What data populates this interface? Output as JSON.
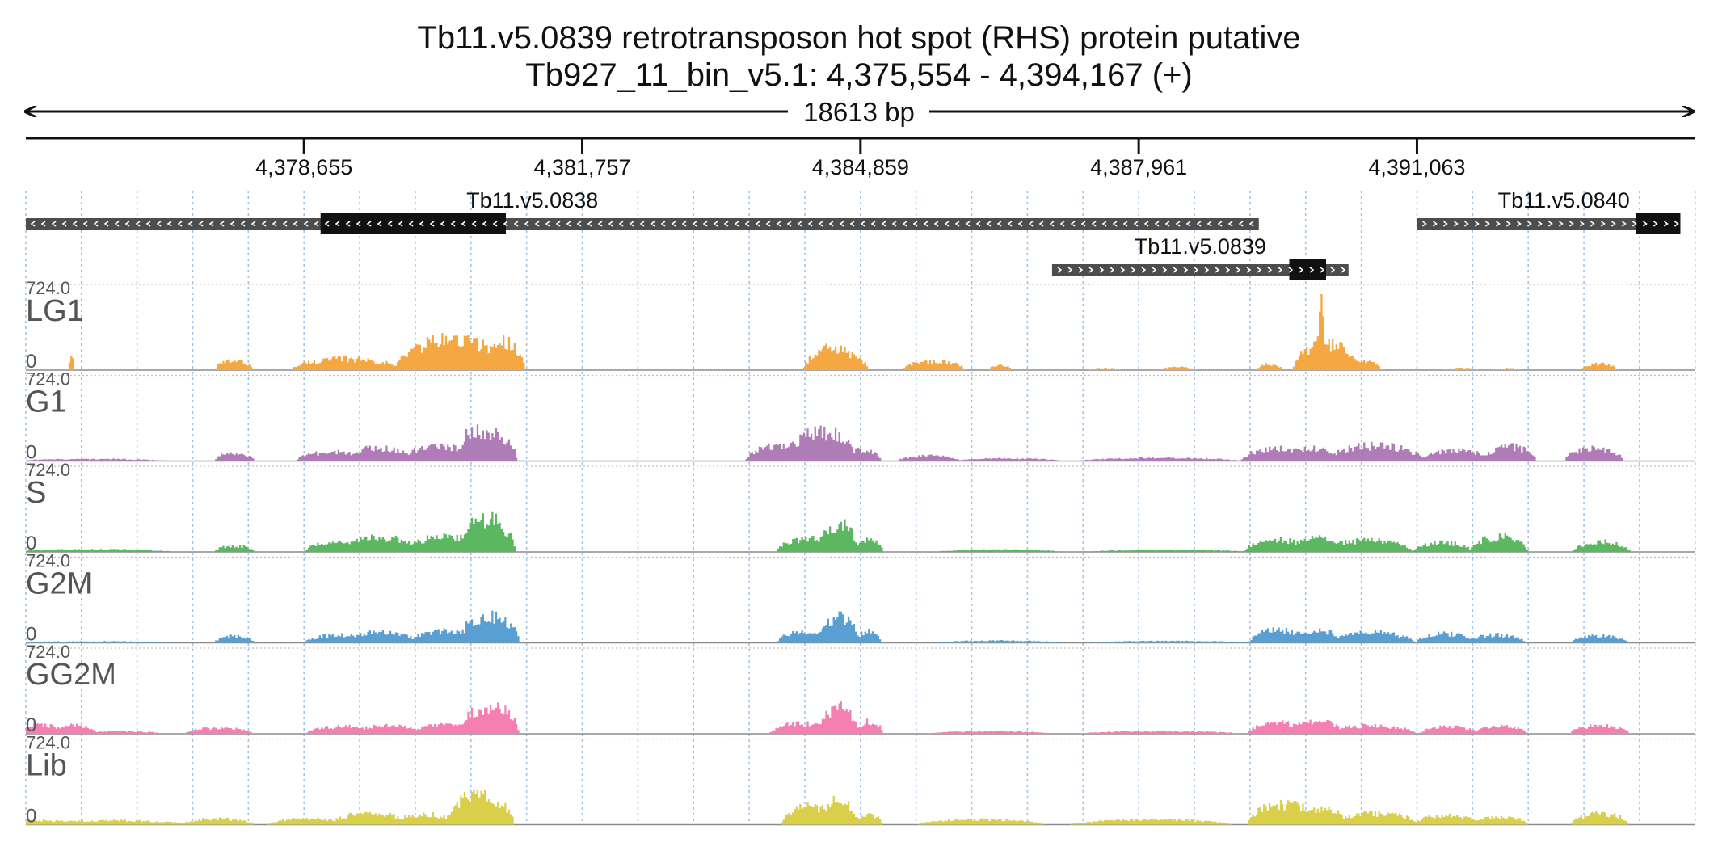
{
  "chart_data": {
    "type": "area",
    "title": "Tb11.v5.0839  retrotransposon hot spot (RHS) protein  putative",
    "subtitle": "Tb927_11_bin_v5.1: 4,375,554 - 4,394,167 (+)",
    "span_label": "18613 bp",
    "x_range": [
      4375554,
      4394167
    ],
    "x_ticks": [
      {
        "value": 4378655,
        "label": "4,378,655"
      },
      {
        "value": 4381757,
        "label": "4,381,757"
      },
      {
        "value": 4384859,
        "label": "4,384,859"
      },
      {
        "value": 4387961,
        "label": "4,387,961"
      },
      {
        "value": 4391063,
        "label": "4,391,063"
      }
    ],
    "grid": true,
    "genes": [
      {
        "name": "Tb11.v5.0838",
        "strand": "-",
        "start": 4375554,
        "end": 4389300,
        "cds_start": 4378840,
        "cds_end": 4380905,
        "row": 0
      },
      {
        "name": "Tb11.v5.0839",
        "strand": "+",
        "start": 4386995,
        "end": 4390300,
        "cds_start": 4389640,
        "cds_end": 4390050,
        "row": 1
      },
      {
        "name": "Tb11.v5.0840",
        "strand": "+",
        "start": 4391063,
        "end": 4394000,
        "cds_start": 4393500,
        "cds_end": 4394000,
        "row": 0
      }
    ],
    "y_range": [
      0,
      724.0
    ],
    "max_label": "724.0",
    "min_label": "0",
    "tracks": [
      {
        "name": "LG1",
        "color": "#f5a742",
        "peaks": [
          [
            4376062,
            40,
            130
          ],
          [
            4377880,
            220,
            90
          ],
          [
            4379130,
            620,
            110
          ],
          [
            4380320,
            650,
            300
          ],
          [
            4380880,
            240,
            280
          ],
          [
            4380520,
            420,
            150
          ],
          [
            4384545,
            320,
            210
          ],
          [
            4384750,
            200,
            120
          ],
          [
            4385680,
            350,
            90
          ],
          [
            4386410,
            130,
            50
          ],
          [
            4387580,
            180,
            20
          ],
          [
            4388400,
            200,
            30
          ],
          [
            4389420,
            150,
            60
          ],
          [
            4390040,
            360,
            250
          ],
          [
            4389992,
            40,
            700
          ],
          [
            4390420,
            240,
            100
          ],
          [
            4391550,
            200,
            20
          ],
          [
            4392080,
            150,
            18
          ],
          [
            4393100,
            200,
            60
          ]
        ]
      },
      {
        "name": "G1",
        "color": "#b07cb8",
        "peaks": [
          [
            4376300,
            850,
            20
          ],
          [
            4377880,
            220,
            80
          ],
          [
            4379000,
            440,
            90
          ],
          [
            4379480,
            400,
            130
          ],
          [
            4380200,
            500,
            140
          ],
          [
            4380700,
            330,
            300
          ],
          [
            4380550,
            150,
            330
          ],
          [
            4384000,
            420,
            160
          ],
          [
            4384420,
            420,
            280
          ],
          [
            4384870,
            220,
            110
          ],
          [
            4385620,
            350,
            50
          ],
          [
            4386500,
            600,
            25
          ],
          [
            4388200,
            900,
            30
          ],
          [
            4389500,
            400,
            120
          ],
          [
            4389900,
            330,
            120
          ],
          [
            4390600,
            550,
            150
          ],
          [
            4391500,
            400,
            100
          ],
          [
            4392100,
            300,
            140
          ],
          [
            4393040,
            330,
            120
          ]
        ]
      },
      {
        "name": "S",
        "color": "#5cb860",
        "peaks": [
          [
            4376300,
            900,
            25
          ],
          [
            4377880,
            220,
            60
          ],
          [
            4379080,
            420,
            100
          ],
          [
            4379500,
            450,
            140
          ],
          [
            4380250,
            450,
            150
          ],
          [
            4380680,
            340,
            300
          ],
          [
            4380760,
            120,
            380
          ],
          [
            4384300,
            380,
            130
          ],
          [
            4384620,
            220,
            280
          ],
          [
            4384960,
            150,
            120
          ],
          [
            4386400,
            700,
            22
          ],
          [
            4388300,
            900,
            20
          ],
          [
            4389520,
            380,
            120
          ],
          [
            4389950,
            300,
            130
          ],
          [
            4390500,
            520,
            110
          ],
          [
            4391350,
            330,
            90
          ],
          [
            4391980,
            320,
            150
          ],
          [
            4393120,
            320,
            100
          ]
        ]
      },
      {
        "name": "G2M",
        "color": "#5a9fd4",
        "peaks": [
          [
            4376300,
            900,
            15
          ],
          [
            4377880,
            220,
            70
          ],
          [
            4379080,
            420,
            80
          ],
          [
            4379500,
            420,
            110
          ],
          [
            4380250,
            420,
            120
          ],
          [
            4380720,
            340,
            270
          ],
          [
            4384280,
            350,
            120
          ],
          [
            4384620,
            220,
            260
          ],
          [
            4384950,
            150,
            110
          ],
          [
            4386400,
            700,
            22
          ],
          [
            4388300,
            900,
            18
          ],
          [
            4389520,
            330,
            130
          ],
          [
            4389960,
            280,
            120
          ],
          [
            4390550,
            500,
            100
          ],
          [
            4391380,
            330,
            90
          ],
          [
            4391950,
            320,
            80
          ],
          [
            4393100,
            320,
            70
          ]
        ]
      },
      {
        "name": "GG2M",
        "color": "#f47fb0",
        "peaks": [
          [
            4375700,
            300,
            90
          ],
          [
            4376100,
            260,
            80
          ],
          [
            4376600,
            500,
            25
          ],
          [
            4377700,
            380,
            60
          ],
          [
            4379100,
            420,
            70
          ],
          [
            4379600,
            400,
            80
          ],
          [
            4380280,
            430,
            90
          ],
          [
            4380720,
            330,
            270
          ],
          [
            4384200,
            350,
            100
          ],
          [
            4384620,
            220,
            260
          ],
          [
            4384960,
            150,
            120
          ],
          [
            4386300,
            700,
            25
          ],
          [
            4388200,
            900,
            25
          ],
          [
            4389520,
            350,
            110
          ],
          [
            4389950,
            320,
            120
          ],
          [
            4390550,
            500,
            80
          ],
          [
            4391420,
            330,
            70
          ],
          [
            4392000,
            300,
            70
          ],
          [
            4393100,
            330,
            80
          ]
        ]
      },
      {
        "name": "Lib",
        "color": "#d9cf4a",
        "peaks": [
          [
            4375700,
            500,
            40
          ],
          [
            4376500,
            900,
            40
          ],
          [
            4377700,
            400,
            60
          ],
          [
            4378700,
            450,
            60
          ],
          [
            4379400,
            450,
            110
          ],
          [
            4380000,
            350,
            100
          ],
          [
            4380620,
            380,
            300
          ],
          [
            4384350,
            380,
            180
          ],
          [
            4384620,
            220,
            230
          ],
          [
            4384950,
            150,
            100
          ],
          [
            4386200,
            700,
            50
          ],
          [
            4388100,
            900,
            50
          ],
          [
            4389580,
            400,
            200
          ],
          [
            4390000,
            300,
            150
          ],
          [
            4390600,
            500,
            110
          ],
          [
            4391400,
            400,
            90
          ],
          [
            4392000,
            300,
            80
          ],
          [
            4393100,
            320,
            110
          ]
        ]
      }
    ]
  }
}
